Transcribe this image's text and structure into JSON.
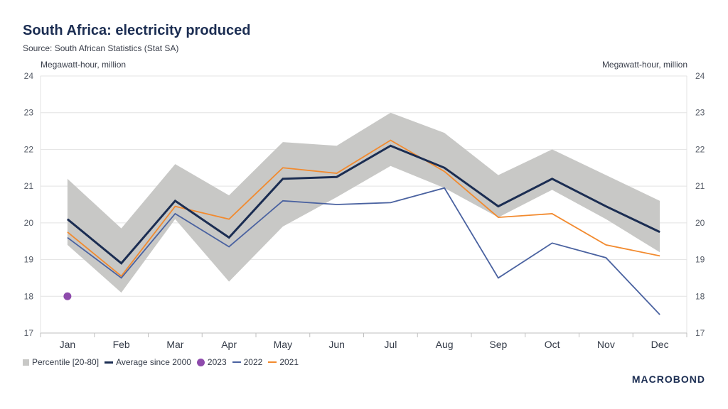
{
  "header": {
    "title": "South Africa: electricity produced",
    "source": "Source: South African Statistics (Stat SA)"
  },
  "logo": "MACROBOND",
  "chart_data": {
    "type": "line",
    "title": "South Africa: electricity produced",
    "ylabel_left": "Megawatt-hour, million",
    "ylabel_right": "Megawatt-hour, million",
    "ylim": [
      17,
      24
    ],
    "yticks": [
      17,
      18,
      19,
      20,
      21,
      22,
      23,
      24
    ],
    "grid": true,
    "legend_position": "bottom-left",
    "categories": [
      "Jan",
      "Feb",
      "Mar",
      "Apr",
      "May",
      "Jun",
      "Jul",
      "Aug",
      "Sep",
      "Oct",
      "Nov",
      "Dec"
    ],
    "band": {
      "name": "Percentile [20-80]",
      "color": "#c8c8c6",
      "upper": [
        21.2,
        19.85,
        21.6,
        20.75,
        22.2,
        22.1,
        23.0,
        22.45,
        21.3,
        22.0,
        21.3,
        20.6
      ],
      "lower": [
        19.4,
        18.1,
        20.1,
        18.4,
        19.9,
        20.7,
        21.55,
        20.95,
        20.15,
        20.9,
        20.1,
        19.2
      ]
    },
    "series": [
      {
        "name": "Average since 2000",
        "color": "#1b2d52",
        "width": 3,
        "values": [
          20.1,
          18.9,
          20.6,
          19.6,
          21.2,
          21.25,
          22.1,
          21.5,
          20.45,
          21.2,
          20.45,
          19.75
        ]
      },
      {
        "name": "2023",
        "color": "#8e4bac",
        "marker": "dot",
        "values": [
          18.0,
          null,
          null,
          null,
          null,
          null,
          null,
          null,
          null,
          null,
          null,
          null
        ]
      },
      {
        "name": "2022",
        "color": "#4a62a0",
        "width": 1.8,
        "values": [
          19.6,
          18.5,
          20.25,
          19.35,
          20.6,
          20.5,
          20.55,
          20.95,
          18.5,
          19.45,
          19.05,
          17.5
        ]
      },
      {
        "name": "2021",
        "color": "#f28a2e",
        "width": 1.8,
        "values": [
          19.75,
          18.55,
          20.45,
          20.1,
          21.5,
          21.35,
          22.25,
          21.4,
          20.15,
          20.25,
          19.4,
          19.1
        ]
      }
    ]
  }
}
